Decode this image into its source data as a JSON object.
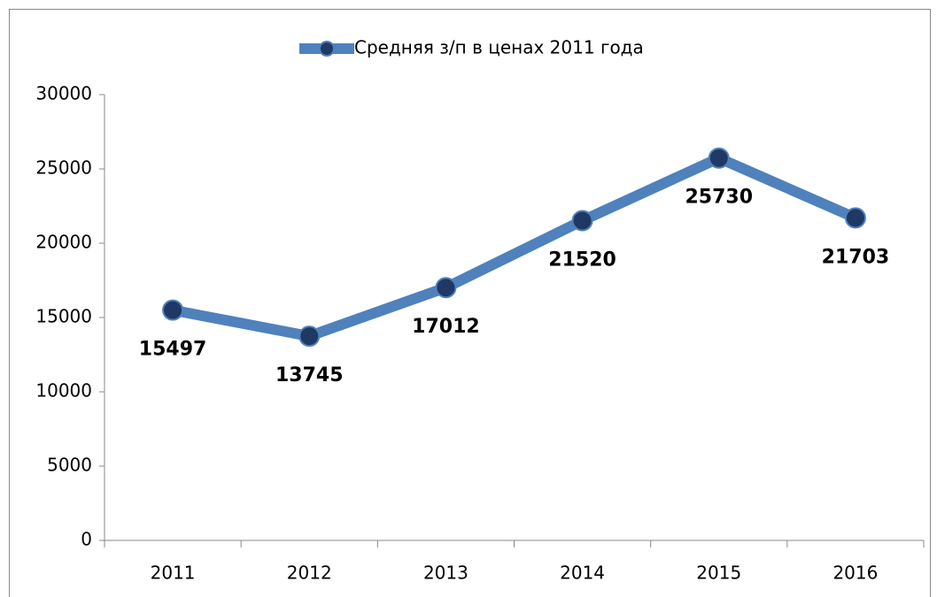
{
  "chart_data": {
    "type": "line",
    "categories": [
      "2011",
      "2012",
      "2013",
      "2014",
      "2015",
      "2016"
    ],
    "series": [
      {
        "name": "Средняя з/п в ценах 2011 года",
        "color": "#4f81bd",
        "marker_color": "#1f3864",
        "values": [
          15497,
          13745,
          17012,
          21520,
          25730,
          21703
        ]
      }
    ],
    "ylim": [
      0,
      30000
    ],
    "yticks": [
      0,
      5000,
      10000,
      15000,
      20000,
      25000,
      30000
    ],
    "grid": false,
    "legend": "top",
    "data_labels": true
  }
}
